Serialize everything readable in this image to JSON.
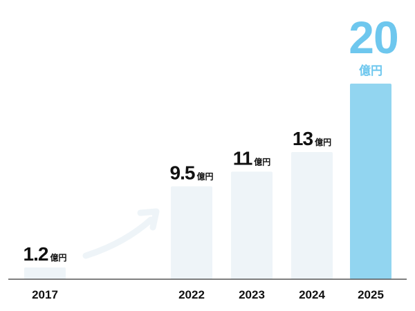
{
  "colors": {
    "bar": "#eef4f8",
    "highlight": "#92d5f0",
    "highlight_text": "#6ec7ee",
    "text": "#111111",
    "axis": "#555555",
    "arrow": "#eef4f8"
  },
  "chart_data": {
    "type": "bar",
    "categories": [
      "2017",
      "2022",
      "2023",
      "2024",
      "2025"
    ],
    "values": [
      1.2,
      9.5,
      11,
      13,
      20
    ],
    "value_labels": [
      "1.2",
      "9.5",
      "11",
      "13",
      "20"
    ],
    "unit": "億円",
    "highlight_index": 4,
    "title": "",
    "xlabel": "",
    "ylabel": "",
    "ylim": [
      0,
      20
    ],
    "grid": false,
    "legend": "none",
    "annotations": [
      "arrow-between-2017-and-2022"
    ]
  }
}
